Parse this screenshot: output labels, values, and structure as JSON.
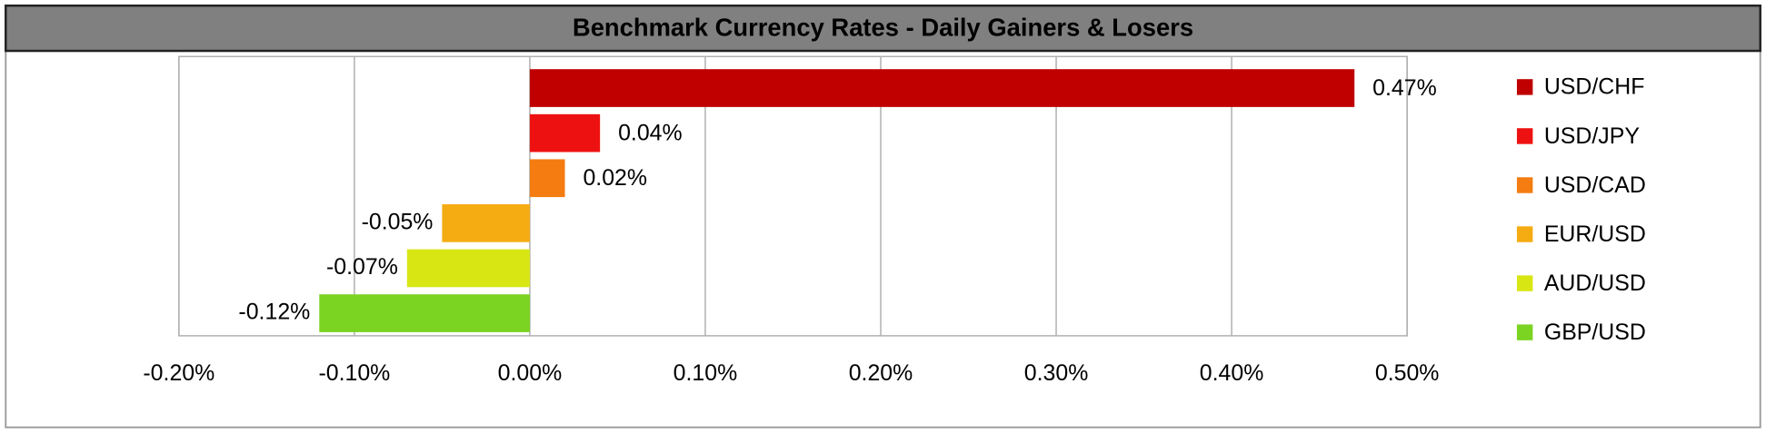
{
  "chart_data": {
    "type": "barh",
    "title": "Benchmark Currency Rates - Daily Gainers & Losers",
    "categories": [
      "USD/CHF",
      "USD/JPY",
      "USD/CAD",
      "EUR/USD",
      "AUD/USD",
      "GBP/USD"
    ],
    "values": [
      0.47,
      0.04,
      0.02,
      -0.05,
      -0.07,
      -0.12
    ],
    "value_labels": [
      "0.47%",
      "0.04%",
      "0.02%",
      "-0.05%",
      "-0.07%",
      "-0.12%"
    ],
    "colors": [
      "#c00000",
      "#ee1111",
      "#f47c10",
      "#f5ac12",
      "#d8e614",
      "#7bd322"
    ],
    "xlim": [
      -0.2,
      0.5
    ],
    "xticks": [
      {
        "value": -0.2,
        "label": "-0.20%"
      },
      {
        "value": -0.1,
        "label": "-0.10%"
      },
      {
        "value": 0,
        "label": "0.00%"
      },
      {
        "value": 0.1,
        "label": "0.10%"
      },
      {
        "value": 0.2,
        "label": "0.20%"
      },
      {
        "value": 0.3,
        "label": "0.30%"
      },
      {
        "value": 0.4,
        "label": "0.40%"
      },
      {
        "value": 0.5,
        "label": "0.50%"
      }
    ],
    "grid": true,
    "legend": "right"
  }
}
